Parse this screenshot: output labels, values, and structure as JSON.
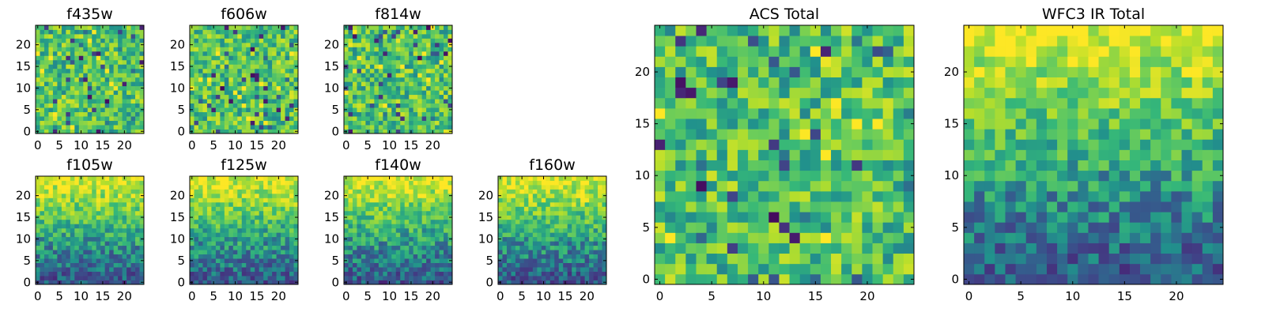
{
  "chart_data": [
    {
      "type": "heatmap",
      "title": "f435w",
      "grid": [
        25,
        25
      ],
      "xticks": [
        0,
        5,
        10,
        15,
        20
      ],
      "yticks": [
        0,
        5,
        10,
        15,
        20
      ],
      "colormap": "viridis",
      "pattern": "noise"
    },
    {
      "type": "heatmap",
      "title": "f606w",
      "grid": [
        25,
        25
      ],
      "xticks": [
        0,
        5,
        10,
        15,
        20
      ],
      "yticks": [
        0,
        5,
        10,
        15,
        20
      ],
      "colormap": "viridis",
      "pattern": "noise"
    },
    {
      "type": "heatmap",
      "title": "f814w",
      "grid": [
        25,
        25
      ],
      "xticks": [
        0,
        5,
        10,
        15,
        20
      ],
      "yticks": [
        0,
        5,
        10,
        15,
        20
      ],
      "colormap": "viridis",
      "pattern": "noise"
    },
    {
      "type": "heatmap",
      "title": "f105w",
      "grid": [
        25,
        25
      ],
      "xticks": [
        0,
        5,
        10,
        15,
        20
      ],
      "yticks": [
        0,
        5,
        10,
        15,
        20
      ],
      "colormap": "viridis",
      "pattern": "gradient"
    },
    {
      "type": "heatmap",
      "title": "f125w",
      "grid": [
        25,
        25
      ],
      "xticks": [
        0,
        5,
        10,
        15,
        20
      ],
      "yticks": [
        0,
        5,
        10,
        15,
        20
      ],
      "colormap": "viridis",
      "pattern": "gradient"
    },
    {
      "type": "heatmap",
      "title": "f140w",
      "grid": [
        25,
        25
      ],
      "xticks": [
        0,
        5,
        10,
        15,
        20
      ],
      "yticks": [
        0,
        5,
        10,
        15,
        20
      ],
      "colormap": "viridis",
      "pattern": "gradient"
    },
    {
      "type": "heatmap",
      "title": "f160w",
      "grid": [
        25,
        25
      ],
      "xticks": [
        0,
        5,
        10,
        15,
        20
      ],
      "yticks": [
        0,
        5,
        10,
        15,
        20
      ],
      "colormap": "viridis",
      "pattern": "gradient"
    },
    {
      "type": "heatmap",
      "title": "ACS Total",
      "grid": [
        25,
        25
      ],
      "xticks": [
        0,
        5,
        10,
        15,
        20
      ],
      "yticks": [
        0,
        5,
        10,
        15,
        20
      ],
      "colormap": "viridis",
      "pattern": "noise"
    },
    {
      "type": "heatmap",
      "title": "WFC3 IR Total",
      "grid": [
        25,
        25
      ],
      "xticks": [
        0,
        5,
        10,
        15,
        20
      ],
      "yticks": [
        0,
        5,
        10,
        15,
        20
      ],
      "colormap": "viridis",
      "pattern": "gradient"
    }
  ]
}
